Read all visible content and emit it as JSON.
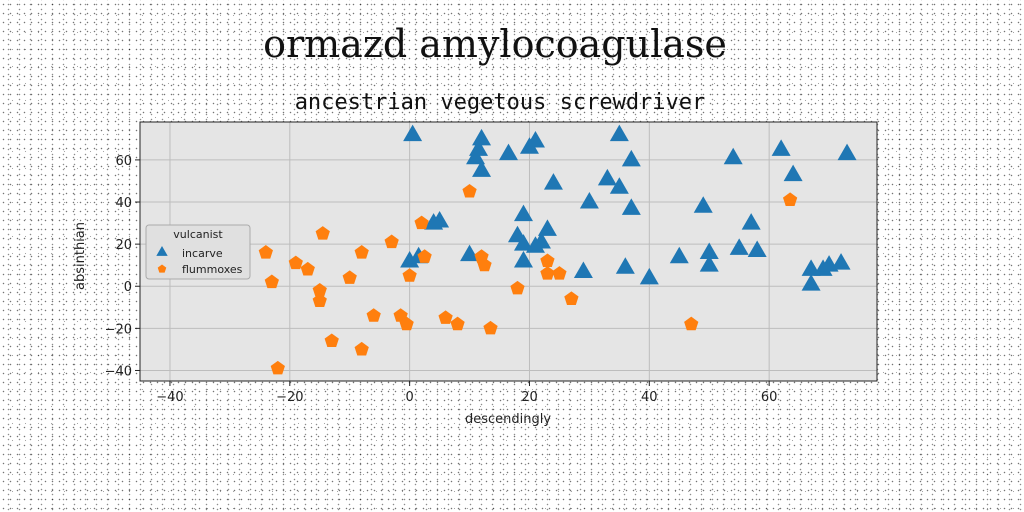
{
  "suptitle": "ormazd amylocoagulase",
  "chart_data": {
    "type": "scatter",
    "title": "ancestrian vegetous screwdriver",
    "xlabel": "descendingly",
    "ylabel": "absinthian",
    "xlim": [
      -45,
      78
    ],
    "ylim": [
      -45,
      78
    ],
    "xticks": [
      -40,
      -20,
      0,
      20,
      40,
      60
    ],
    "yticks": [
      -40,
      -20,
      0,
      20,
      40,
      60
    ],
    "grid": true,
    "legend": {
      "title": "vulcanist",
      "position": "center-left"
    },
    "colors": {
      "incarve": "#1f77b4",
      "flummoxes": "#ff7f0e"
    },
    "series": [
      {
        "name": "incarve",
        "marker": "triangle",
        "points": [
          [
            0.5,
            72
          ],
          [
            0,
            12
          ],
          [
            1.5,
            14
          ],
          [
            4,
            30
          ],
          [
            5,
            31
          ],
          [
            10,
            15
          ],
          [
            11,
            61
          ],
          [
            12,
            70
          ],
          [
            12,
            55
          ],
          [
            11.5,
            65
          ],
          [
            16.5,
            63
          ],
          [
            18,
            24
          ],
          [
            19,
            34
          ],
          [
            19,
            20
          ],
          [
            19,
            12
          ],
          [
            20,
            66
          ],
          [
            21,
            69
          ],
          [
            21,
            19
          ],
          [
            22,
            21
          ],
          [
            23,
            27
          ],
          [
            24,
            49
          ],
          [
            29,
            7
          ],
          [
            30,
            40
          ],
          [
            33,
            51
          ],
          [
            35,
            72
          ],
          [
            35,
            47
          ],
          [
            36,
            9
          ],
          [
            37,
            37
          ],
          [
            37,
            60
          ],
          [
            40,
            4
          ],
          [
            45,
            14
          ],
          [
            49,
            38
          ],
          [
            50,
            10
          ],
          [
            50,
            16
          ],
          [
            54,
            61
          ],
          [
            55,
            18
          ],
          [
            57,
            30
          ],
          [
            58,
            17
          ],
          [
            62,
            65
          ],
          [
            64,
            53
          ],
          [
            67,
            1
          ],
          [
            67,
            8
          ],
          [
            69,
            8
          ],
          [
            70,
            10
          ],
          [
            72,
            11
          ],
          [
            73,
            63
          ]
        ]
      },
      {
        "name": "flummoxes",
        "marker": "pentagon",
        "points": [
          [
            -24,
            16
          ],
          [
            -23,
            2
          ],
          [
            -22,
            -39
          ],
          [
            -19,
            11
          ],
          [
            -17,
            8
          ],
          [
            -15,
            -2
          ],
          [
            -15,
            -7
          ],
          [
            -14.5,
            25
          ],
          [
            -13,
            -26
          ],
          [
            -10,
            4
          ],
          [
            -8,
            16
          ],
          [
            -8,
            -30
          ],
          [
            -6,
            -14
          ],
          [
            -3,
            21
          ],
          [
            -1.5,
            -14
          ],
          [
            -0.5,
            -18
          ],
          [
            0,
            5
          ],
          [
            2,
            30
          ],
          [
            2.5,
            14
          ],
          [
            6,
            -15
          ],
          [
            8,
            -18
          ],
          [
            10,
            45
          ],
          [
            12,
            14
          ],
          [
            12.5,
            10
          ],
          [
            13.5,
            -20
          ],
          [
            18,
            -1
          ],
          [
            23,
            12
          ],
          [
            23,
            6
          ],
          [
            25,
            6
          ],
          [
            27,
            -6
          ],
          [
            47,
            -18
          ],
          [
            63.5,
            41
          ]
        ]
      }
    ]
  }
}
